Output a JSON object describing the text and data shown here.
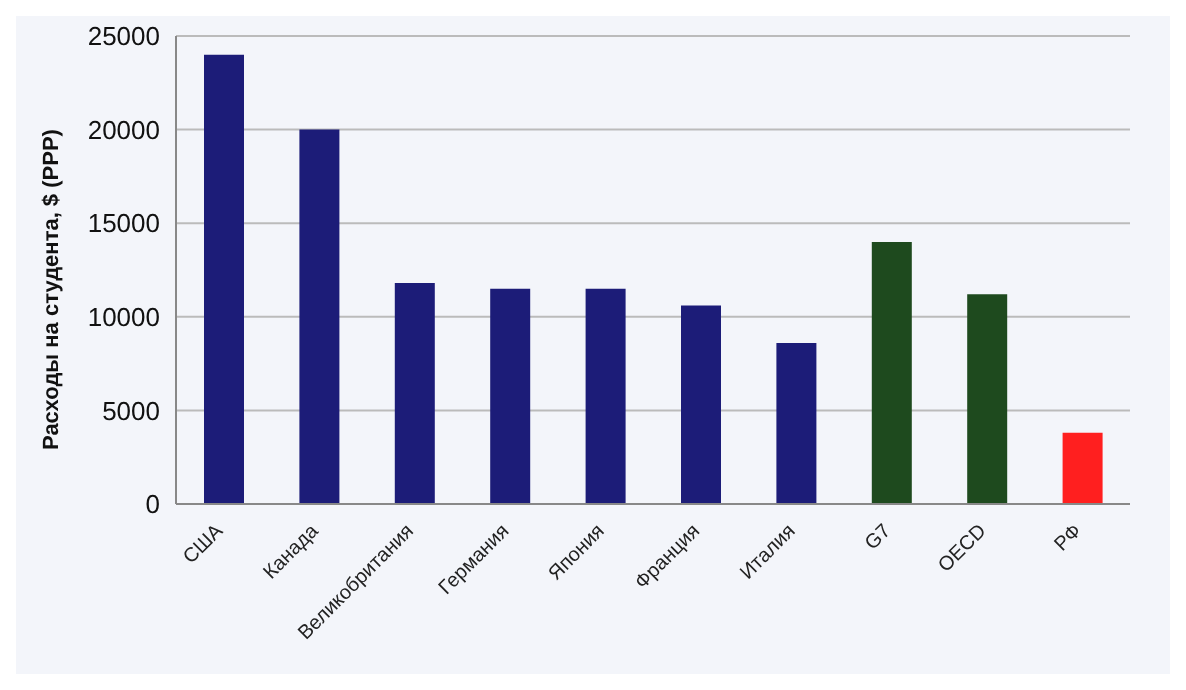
{
  "chart_data": {
    "type": "bar",
    "ylabel": "Расходы на студента, $ (PPP)",
    "categories": [
      "США",
      "Канада",
      "Великобритания",
      "Германия",
      "Япония",
      "Франция",
      "Италия",
      "G7",
      "OECD",
      "РФ"
    ],
    "values": [
      24000,
      20000,
      11800,
      11500,
      11500,
      10600,
      8600,
      14000,
      11200,
      3800
    ],
    "colors": [
      "#1c1c78",
      "#1c1c78",
      "#1c1c78",
      "#1c1c78",
      "#1c1c78",
      "#1c1c78",
      "#1c1c78",
      "#1e4a1e",
      "#1e4a1e",
      "#ff1f1f"
    ],
    "ylim": [
      0,
      25000
    ],
    "yticks": [
      0,
      5000,
      10000,
      15000,
      20000,
      25000
    ],
    "grid": "y"
  }
}
